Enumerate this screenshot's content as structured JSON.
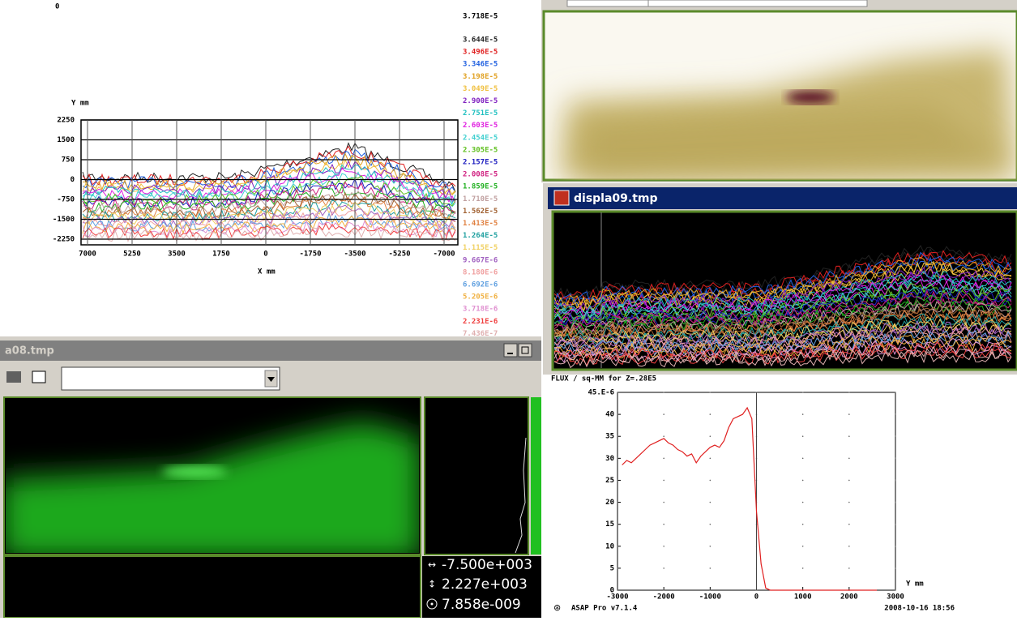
{
  "windows": {
    "contour": {
      "corner_label": "0"
    },
    "display": {
      "title": "displa09.tmp"
    },
    "viewer": {
      "title": "a08.tmp",
      "readouts": [
        "-7.500e+003",
        "2.227e+003",
        "7.858e-009"
      ]
    }
  },
  "chart_data": [
    {
      "type": "contour",
      "y_label": "Y mm",
      "x_label": "X mm",
      "max_label": "3.718E-5",
      "xlim": [
        7000,
        -7000
      ],
      "xticks": [
        7000,
        5250,
        3500,
        1750,
        0,
        -1750,
        -3500,
        -5250,
        -7000
      ],
      "ylim": [
        -2250,
        2250
      ],
      "yticks": [
        2250,
        1500,
        750,
        0,
        -750,
        -1500,
        -2250
      ],
      "grid": true,
      "levels": [
        {
          "label": "3.644E-5",
          "color": "#222222"
        },
        {
          "label": "3.496E-5",
          "color": "#e02020"
        },
        {
          "label": "3.346E-5",
          "color": "#2060e0"
        },
        {
          "label": "3.198E-5",
          "color": "#e0a020"
        },
        {
          "label": "3.049E-5",
          "color": "#f0c040"
        },
        {
          "label": "2.900E-5",
          "color": "#8020c0"
        },
        {
          "label": "2.751E-5",
          "color": "#20c0c0"
        },
        {
          "label": "2.603E-5",
          "color": "#e020e0"
        },
        {
          "label": "2.454E-5",
          "color": "#40d0d0"
        },
        {
          "label": "2.305E-5",
          "color": "#60c020"
        },
        {
          "label": "2.157E-5",
          "color": "#2020c0"
        },
        {
          "label": "2.008E-5",
          "color": "#d02080"
        },
        {
          "label": "1.859E-5",
          "color": "#20b020"
        },
        {
          "label": "1.710E-5",
          "color": "#c0a0a0"
        },
        {
          "label": "1.562E-5",
          "color": "#a06030"
        },
        {
          "label": "1.413E-5",
          "color": "#e08040"
        },
        {
          "label": "1.264E-5",
          "color": "#20a0a0"
        },
        {
          "label": "1.115E-5",
          "color": "#f0d060"
        },
        {
          "label": "9.667E-6",
          "color": "#a060c0"
        },
        {
          "label": "8.180E-6",
          "color": "#f0a0a0"
        },
        {
          "label": "6.692E-6",
          "color": "#60a0e0"
        },
        {
          "label": "5.205E-6",
          "color": "#f0b040"
        },
        {
          "label": "3.718E-6",
          "color": "#e090d0"
        },
        {
          "label": "2.231E-6",
          "color": "#f04040"
        },
        {
          "label": "7.436E-7",
          "color": "#e0b0b0"
        }
      ]
    },
    {
      "type": "line",
      "title": "FLUX / sq-MM for Z=.28E5",
      "x_label": "Y mm",
      "x": [
        -2900,
        -2800,
        -2700,
        -2600,
        -2500,
        -2400,
        -2300,
        -2200,
        -2100,
        -2000,
        -1900,
        -1800,
        -1700,
        -1600,
        -1500,
        -1400,
        -1300,
        -1200,
        -1100,
        -1000,
        -900,
        -800,
        -700,
        -600,
        -500,
        -400,
        -300,
        -200,
        -100,
        0,
        100,
        200,
        300,
        500,
        1000,
        1500,
        2000,
        2600
      ],
      "series": [
        {
          "color": "#e02020",
          "values": [
            28.5,
            29.5,
            29,
            30,
            31,
            32,
            33,
            33.5,
            34,
            34.5,
            33.5,
            33,
            32,
            31.5,
            30.5,
            31,
            29,
            30.5,
            31.5,
            32.5,
            33,
            32.5,
            34,
            37,
            39,
            39.5,
            40,
            41.5,
            39,
            18,
            6,
            0.5,
            0,
            0,
            0,
            0,
            0,
            0
          ]
        }
      ],
      "marker_x": 0,
      "xlim": [
        -3000,
        3000
      ],
      "xticks": [
        -3000,
        -2000,
        -1000,
        0,
        1000,
        2000,
        3000
      ],
      "ylim": [
        0,
        45
      ],
      "yticks": [
        0,
        5,
        10,
        15,
        20,
        25,
        30,
        35,
        40,
        {
          "value": 45,
          "label": "45.E-6"
        }
      ],
      "grid": "dots",
      "footer": {
        "app": "ASAP  Pro  v7.1.4",
        "timestamp": "2008-10-16  18:56"
      }
    }
  ]
}
